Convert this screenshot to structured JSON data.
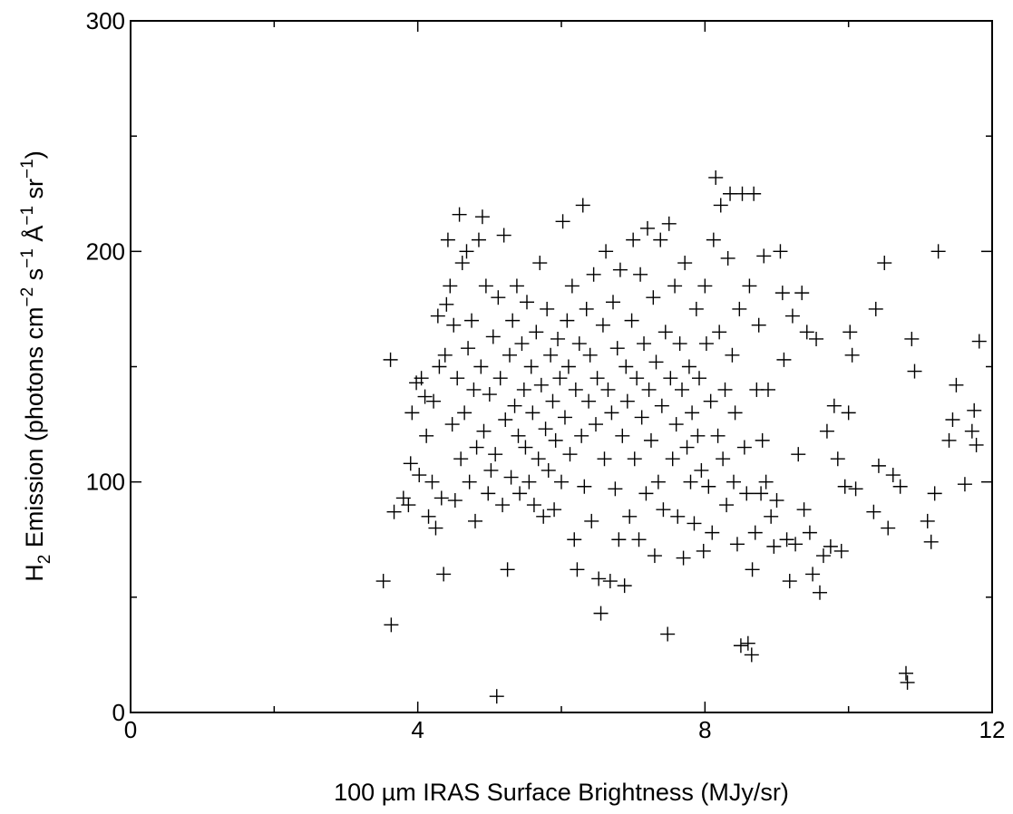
{
  "chart_data": {
    "type": "scatter",
    "title": "",
    "xlabel": "100 µm IRAS Surface Brightness (MJy/sr)",
    "ylabel": "H2 Emission (photons cm−2 s−1 Å−1 sr−1)",
    "ylabel_parts": {
      "h": "H",
      "h_sub": "2",
      "emission": " Emission (photons cm",
      "cm_exp": "−2",
      "s": " s",
      "s_exp": "−1",
      "angstrom": " Å",
      "a_exp": "−1",
      "sr": " sr",
      "sr_exp": "−1",
      "close": ")"
    },
    "xlim": [
      0,
      12
    ],
    "ylim": [
      0,
      300
    ],
    "x_ticks": [
      0,
      4,
      8,
      12
    ],
    "x_tick_labels": [
      "0",
      "4",
      "8",
      "12"
    ],
    "y_ticks": [
      0,
      100,
      200,
      300
    ],
    "y_tick_labels": [
      "0",
      "100",
      "200",
      "300"
    ],
    "marker": "plus",
    "color": "#000000",
    "grid": false,
    "legend": "none",
    "points": [
      [
        3.52,
        57
      ],
      [
        3.63,
        38
      ],
      [
        3.62,
        153
      ],
      [
        3.67,
        87
      ],
      [
        3.8,
        93
      ],
      [
        3.87,
        90
      ],
      [
        3.9,
        108
      ],
      [
        3.92,
        130
      ],
      [
        3.98,
        143
      ],
      [
        4.02,
        103
      ],
      [
        4.05,
        145
      ],
      [
        4.1,
        137
      ],
      [
        4.12,
        120
      ],
      [
        4.15,
        85
      ],
      [
        4.2,
        100
      ],
      [
        4.22,
        135
      ],
      [
        4.25,
        80
      ],
      [
        4.28,
        172
      ],
      [
        4.3,
        150
      ],
      [
        4.33,
        93
      ],
      [
        4.36,
        60
      ],
      [
        4.38,
        155
      ],
      [
        4.4,
        177
      ],
      [
        4.42,
        205
      ],
      [
        4.45,
        185
      ],
      [
        4.48,
        125
      ],
      [
        4.5,
        168
      ],
      [
        4.52,
        92
      ],
      [
        4.55,
        145
      ],
      [
        4.58,
        216
      ],
      [
        4.6,
        110
      ],
      [
        4.62,
        195
      ],
      [
        4.65,
        130
      ],
      [
        4.68,
        200
      ],
      [
        4.7,
        158
      ],
      [
        4.72,
        100
      ],
      [
        4.75,
        170
      ],
      [
        4.78,
        140
      ],
      [
        4.8,
        83
      ],
      [
        4.82,
        115
      ],
      [
        4.85,
        205
      ],
      [
        4.88,
        150
      ],
      [
        4.9,
        215
      ],
      [
        4.92,
        122
      ],
      [
        4.95,
        185
      ],
      [
        4.98,
        95
      ],
      [
        5.0,
        138
      ],
      [
        5.02,
        105
      ],
      [
        5.05,
        163
      ],
      [
        5.08,
        112
      ],
      [
        5.1,
        7
      ],
      [
        5.12,
        180
      ],
      [
        5.15,
        145
      ],
      [
        5.18,
        90
      ],
      [
        5.2,
        207
      ],
      [
        5.22,
        127
      ],
      [
        5.25,
        62
      ],
      [
        5.28,
        155
      ],
      [
        5.3,
        102
      ],
      [
        5.32,
        170
      ],
      [
        5.35,
        133
      ],
      [
        5.38,
        185
      ],
      [
        5.4,
        120
      ],
      [
        5.42,
        95
      ],
      [
        5.45,
        160
      ],
      [
        5.48,
        140
      ],
      [
        5.5,
        115
      ],
      [
        5.52,
        178
      ],
      [
        5.55,
        100
      ],
      [
        5.58,
        150
      ],
      [
        5.6,
        130
      ],
      [
        5.62,
        90
      ],
      [
        5.65,
        165
      ],
      [
        5.68,
        110
      ],
      [
        5.7,
        195
      ],
      [
        5.72,
        142
      ],
      [
        5.75,
        85
      ],
      [
        5.78,
        123
      ],
      [
        5.8,
        175
      ],
      [
        5.82,
        105
      ],
      [
        5.85,
        155
      ],
      [
        5.88,
        135
      ],
      [
        5.9,
        88
      ],
      [
        5.92,
        118
      ],
      [
        5.95,
        162
      ],
      [
        5.98,
        145
      ],
      [
        6.0,
        100
      ],
      [
        6.02,
        213
      ],
      [
        6.05,
        128
      ],
      [
        6.08,
        170
      ],
      [
        6.1,
        150
      ],
      [
        6.12,
        112
      ],
      [
        6.15,
        185
      ],
      [
        6.18,
        75
      ],
      [
        6.2,
        140
      ],
      [
        6.22,
        62
      ],
      [
        6.25,
        160
      ],
      [
        6.28,
        120
      ],
      [
        6.3,
        220
      ],
      [
        6.32,
        98
      ],
      [
        6.35,
        175
      ],
      [
        6.38,
        135
      ],
      [
        6.4,
        155
      ],
      [
        6.42,
        83
      ],
      [
        6.45,
        190
      ],
      [
        6.48,
        125
      ],
      [
        6.5,
        145
      ],
      [
        6.52,
        58
      ],
      [
        6.55,
        43
      ],
      [
        6.58,
        168
      ],
      [
        6.6,
        110
      ],
      [
        6.62,
        200
      ],
      [
        6.65,
        140
      ],
      [
        6.68,
        57
      ],
      [
        6.7,
        130
      ],
      [
        6.72,
        178
      ],
      [
        6.75,
        97
      ],
      [
        6.78,
        158
      ],
      [
        6.8,
        75
      ],
      [
        6.82,
        192
      ],
      [
        6.85,
        120
      ],
      [
        6.88,
        55
      ],
      [
        6.9,
        150
      ],
      [
        6.92,
        135
      ],
      [
        6.95,
        85
      ],
      [
        6.98,
        170
      ],
      [
        7.0,
        205
      ],
      [
        7.02,
        110
      ],
      [
        7.05,
        145
      ],
      [
        7.08,
        75
      ],
      [
        7.1,
        190
      ],
      [
        7.12,
        128
      ],
      [
        7.15,
        160
      ],
      [
        7.18,
        95
      ],
      [
        7.2,
        210
      ],
      [
        7.22,
        140
      ],
      [
        7.25,
        118
      ],
      [
        7.28,
        180
      ],
      [
        7.3,
        68
      ],
      [
        7.32,
        152
      ],
      [
        7.35,
        100
      ],
      [
        7.38,
        205
      ],
      [
        7.4,
        133
      ],
      [
        7.42,
        88
      ],
      [
        7.45,
        165
      ],
      [
        7.48,
        34
      ],
      [
        7.5,
        212
      ],
      [
        7.52,
        145
      ],
      [
        7.55,
        110
      ],
      [
        7.58,
        185
      ],
      [
        7.6,
        125
      ],
      [
        7.62,
        85
      ],
      [
        7.65,
        160
      ],
      [
        7.68,
        140
      ],
      [
        7.7,
        67
      ],
      [
        7.72,
        195
      ],
      [
        7.75,
        115
      ],
      [
        7.78,
        150
      ],
      [
        7.8,
        100
      ],
      [
        7.82,
        130
      ],
      [
        7.85,
        82
      ],
      [
        7.88,
        175
      ],
      [
        7.9,
        120
      ],
      [
        7.92,
        145
      ],
      [
        7.95,
        105
      ],
      [
        7.98,
        70
      ],
      [
        8.0,
        185
      ],
      [
        8.02,
        160
      ],
      [
        8.05,
        98
      ],
      [
        8.08,
        135
      ],
      [
        8.1,
        78
      ],
      [
        8.12,
        205
      ],
      [
        8.15,
        232
      ],
      [
        8.18,
        120
      ],
      [
        8.2,
        165
      ],
      [
        8.22,
        220
      ],
      [
        8.25,
        110
      ],
      [
        8.28,
        140
      ],
      [
        8.3,
        90
      ],
      [
        8.32,
        197
      ],
      [
        8.35,
        225
      ],
      [
        8.38,
        155
      ],
      [
        8.4,
        100
      ],
      [
        8.42,
        130
      ],
      [
        8.45,
        73
      ],
      [
        8.48,
        175
      ],
      [
        8.5,
        29
      ],
      [
        8.52,
        225
      ],
      [
        8.55,
        115
      ],
      [
        8.58,
        95
      ],
      [
        8.6,
        30
      ],
      [
        8.62,
        185
      ],
      [
        8.65,
        25
      ],
      [
        8.66,
        62
      ],
      [
        8.68,
        225
      ],
      [
        8.7,
        78
      ],
      [
        8.72,
        140
      ],
      [
        8.75,
        168
      ],
      [
        8.78,
        95
      ],
      [
        8.8,
        118
      ],
      [
        8.82,
        198
      ],
      [
        8.85,
        100
      ],
      [
        8.88,
        140
      ],
      [
        8.92,
        85
      ],
      [
        8.96,
        72
      ],
      [
        9.0,
        92
      ],
      [
        9.05,
        200
      ],
      [
        9.08,
        182
      ],
      [
        9.1,
        153
      ],
      [
        9.14,
        75
      ],
      [
        9.18,
        57
      ],
      [
        9.22,
        172
      ],
      [
        9.26,
        73
      ],
      [
        9.3,
        112
      ],
      [
        9.35,
        182
      ],
      [
        9.38,
        88
      ],
      [
        9.42,
        165
      ],
      [
        9.46,
        78
      ],
      [
        9.5,
        60
      ],
      [
        9.55,
        162
      ],
      [
        9.6,
        52
      ],
      [
        9.65,
        68
      ],
      [
        9.7,
        122
      ],
      [
        9.75,
        72
      ],
      [
        9.8,
        133
      ],
      [
        9.85,
        110
      ],
      [
        9.9,
        70
      ],
      [
        9.95,
        98
      ],
      [
        10.0,
        130
      ],
      [
        10.02,
        165
      ],
      [
        10.05,
        155
      ],
      [
        10.1,
        97
      ],
      [
        10.35,
        87
      ],
      [
        10.38,
        175
      ],
      [
        10.42,
        107
      ],
      [
        10.5,
        195
      ],
      [
        10.55,
        80
      ],
      [
        10.62,
        103
      ],
      [
        10.72,
        98
      ],
      [
        10.8,
        17
      ],
      [
        10.82,
        13
      ],
      [
        10.88,
        162
      ],
      [
        10.92,
        148
      ],
      [
        11.1,
        83
      ],
      [
        11.15,
        74
      ],
      [
        11.2,
        95
      ],
      [
        11.25,
        200
      ],
      [
        11.4,
        118
      ],
      [
        11.45,
        127
      ],
      [
        11.5,
        142
      ],
      [
        11.62,
        99
      ],
      [
        11.72,
        122
      ],
      [
        11.75,
        131
      ],
      [
        11.78,
        116
      ],
      [
        11.82,
        161
      ]
    ]
  }
}
